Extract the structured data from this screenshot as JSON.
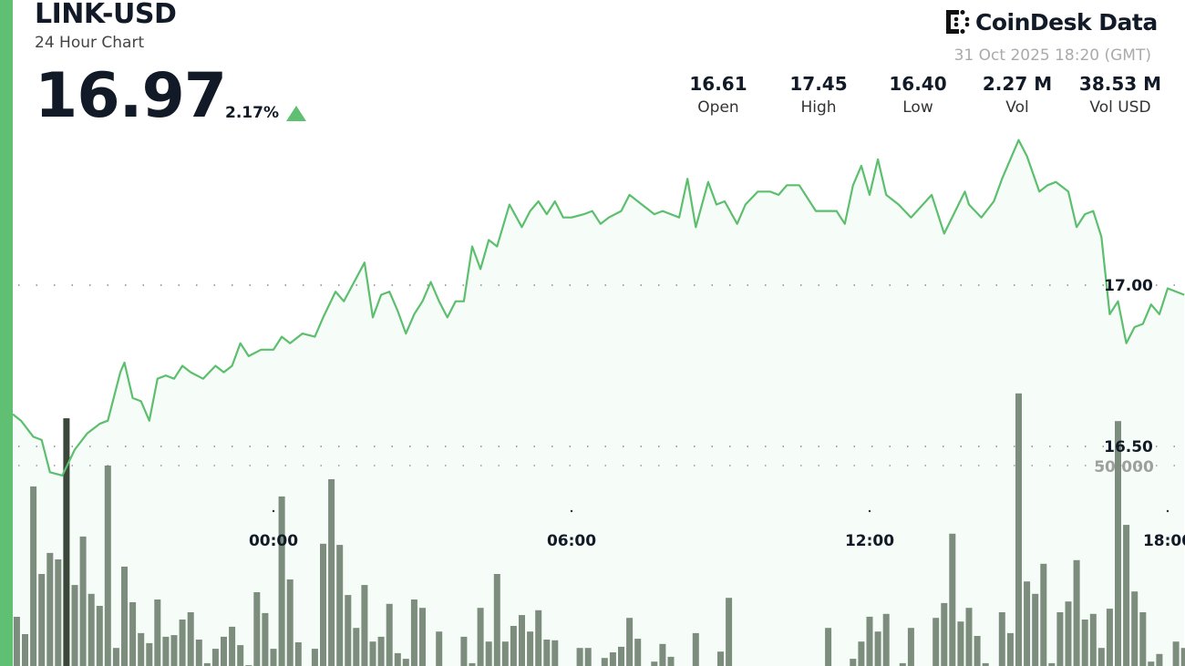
{
  "header": {
    "title": "LINK-USD",
    "subtitle": "24 Hour Chart",
    "price": "16.97",
    "change": "2.17%",
    "change_direction": "up",
    "brand": "CoinDesk Data",
    "timestamp": "31 Oct 2025 18:20 (GMT)",
    "stats": [
      {
        "value": "16.61",
        "label": "Open"
      },
      {
        "value": "17.45",
        "label": "High"
      },
      {
        "value": "16.40",
        "label": "Low"
      },
      {
        "value": "2.27 M",
        "label": "Vol"
      },
      {
        "value": "38.53 M",
        "label": "Vol USD"
      }
    ]
  },
  "colors": {
    "accent": "#5fbf72",
    "line": "#5cbf6e",
    "volume": "#6f806f",
    "volume_highlight": "#3c473c",
    "text": "#111a26"
  },
  "chart_data": {
    "type": "line",
    "title": "",
    "x_ticks": [
      "00:00",
      "06:00",
      "12:00",
      "18:00"
    ],
    "price_ticks": [
      {
        "value": 17.0,
        "label": "17.00"
      },
      {
        "value": 16.5,
        "label": "16.50"
      }
    ],
    "volume_ticks": [
      {
        "value": 50000,
        "label": "50,000"
      }
    ],
    "grid": "dotted horizontal",
    "series": [
      {
        "type": "line-area",
        "points": [
          [
            "10-30 18:45",
            16.6
          ],
          [
            "10-30 18:55",
            16.58
          ],
          [
            "10-30 19:10",
            16.53
          ],
          [
            "10-30 19:20",
            16.52
          ],
          [
            "10-30 19:30",
            16.42
          ],
          [
            "10-30 19:45",
            16.41
          ],
          [
            "10-30 20:00",
            16.49
          ],
          [
            "10-30 20:15",
            16.54
          ],
          [
            "10-30 20:30",
            16.57
          ],
          [
            "10-30 20:40",
            16.58
          ],
          [
            "10-30 20:55",
            16.73
          ],
          [
            "10-30 21:00",
            16.76
          ],
          [
            "10-30 21:10",
            16.65
          ],
          [
            "10-30 21:20",
            16.64
          ],
          [
            "10-30 21:30",
            16.58
          ],
          [
            "10-30 21:40",
            16.71
          ],
          [
            "10-30 21:50",
            16.72
          ],
          [
            "10-30 22:00",
            16.71
          ],
          [
            "10-30 22:10",
            16.75
          ],
          [
            "10-30 22:20",
            16.73
          ],
          [
            "10-30 22:35",
            16.71
          ],
          [
            "10-30 22:50",
            16.75
          ],
          [
            "10-30 23:00",
            16.73
          ],
          [
            "10-30 23:10",
            16.75
          ],
          [
            "10-30 23:20",
            16.82
          ],
          [
            "10-30 23:30",
            16.78
          ],
          [
            "10-30 23:45",
            16.8
          ],
          [
            "10-31 00:00",
            16.8
          ],
          [
            "10-31 00:10",
            16.84
          ],
          [
            "10-31 00:20",
            16.82
          ],
          [
            "10-31 00:35",
            16.85
          ],
          [
            "10-31 00:50",
            16.84
          ],
          [
            "10-31 01:00",
            16.9
          ],
          [
            "10-31 01:15",
            16.98
          ],
          [
            "10-31 01:25",
            16.95
          ],
          [
            "10-31 01:50",
            17.07
          ],
          [
            "10-31 02:00",
            16.9
          ],
          [
            "10-31 02:10",
            16.97
          ],
          [
            "10-31 02:20",
            16.98
          ],
          [
            "10-31 02:30",
            16.92
          ],
          [
            "10-31 02:40",
            16.85
          ],
          [
            "10-31 02:50",
            16.91
          ],
          [
            "10-31 03:00",
            16.95
          ],
          [
            "10-31 03:10",
            17.01
          ],
          [
            "10-31 03:20",
            16.95
          ],
          [
            "10-31 03:30",
            16.9
          ],
          [
            "10-31 03:40",
            16.95
          ],
          [
            "10-31 03:50",
            16.95
          ],
          [
            "10-31 04:00",
            17.12
          ],
          [
            "10-31 04:10",
            17.05
          ],
          [
            "10-31 04:20",
            17.14
          ],
          [
            "10-31 04:30",
            17.12
          ],
          [
            "10-31 04:45",
            17.25
          ],
          [
            "10-31 05:00",
            17.18
          ],
          [
            "10-31 05:10",
            17.23
          ],
          [
            "10-31 05:20",
            17.26
          ],
          [
            "10-31 05:30",
            17.22
          ],
          [
            "10-31 05:40",
            17.26
          ],
          [
            "10-31 05:50",
            17.21
          ],
          [
            "10-31 06:00",
            17.21
          ],
          [
            "10-31 06:15",
            17.22
          ],
          [
            "10-31 06:25",
            17.23
          ],
          [
            "10-31 06:35",
            17.19
          ],
          [
            "10-31 06:45",
            17.21
          ],
          [
            "10-31 07:00",
            17.23
          ],
          [
            "10-31 07:10",
            17.28
          ],
          [
            "10-31 07:25",
            17.25
          ],
          [
            "10-31 07:40",
            17.22
          ],
          [
            "10-31 07:50",
            17.23
          ],
          [
            "10-31 08:10",
            17.21
          ],
          [
            "10-31 08:20",
            17.33
          ],
          [
            "10-31 08:30",
            17.18
          ],
          [
            "10-31 08:45",
            17.32
          ],
          [
            "10-31 08:55",
            17.25
          ],
          [
            "10-31 09:05",
            17.26
          ],
          [
            "10-31 09:20",
            17.19
          ],
          [
            "10-31 09:30",
            17.25
          ],
          [
            "10-31 09:45",
            17.29
          ],
          [
            "10-31 10:00",
            17.29
          ],
          [
            "10-31 10:10",
            17.28
          ],
          [
            "10-31 10:20",
            17.31
          ],
          [
            "10-31 10:35",
            17.31
          ],
          [
            "10-31 10:55",
            17.23
          ],
          [
            "10-31 11:05",
            17.23
          ],
          [
            "10-31 11:20",
            17.23
          ],
          [
            "10-31 11:30",
            17.19
          ],
          [
            "10-31 11:40",
            17.31
          ],
          [
            "10-31 11:50",
            17.37
          ],
          [
            "10-31 12:00",
            17.28
          ],
          [
            "10-31 12:10",
            17.39
          ],
          [
            "10-31 12:20",
            17.28
          ],
          [
            "10-31 12:35",
            17.25
          ],
          [
            "10-31 12:50",
            17.21
          ],
          [
            "10-31 13:15",
            17.28
          ],
          [
            "10-31 13:30",
            17.16
          ],
          [
            "10-31 13:55",
            17.29
          ],
          [
            "10-31 14:00",
            17.25
          ],
          [
            "10-31 14:15",
            17.21
          ],
          [
            "10-31 14:30",
            17.26
          ],
          [
            "10-31 14:40",
            17.33
          ],
          [
            "10-31 15:00",
            17.45
          ],
          [
            "10-31 15:10",
            17.4
          ],
          [
            "10-31 15:25",
            17.29
          ],
          [
            "10-31 15:35",
            17.31
          ],
          [
            "10-31 15:45",
            17.32
          ],
          [
            "10-31 16:00",
            17.29
          ],
          [
            "10-31 16:10",
            17.18
          ],
          [
            "10-31 16:20",
            17.22
          ],
          [
            "10-31 16:30",
            17.23
          ],
          [
            "10-31 16:40",
            17.15
          ],
          [
            "10-31 16:50",
            16.91
          ],
          [
            "10-31 17:00",
            16.95
          ],
          [
            "10-31 17:10",
            16.82
          ],
          [
            "10-31 17:20",
            16.87
          ],
          [
            "10-31 17:30",
            16.88
          ],
          [
            "10-31 17:40",
            16.94
          ],
          [
            "10-31 17:50",
            16.91
          ],
          [
            "10-31 18:00",
            16.99
          ],
          [
            "10-31 18:20",
            16.97
          ]
        ]
      },
      {
        "type": "volume-bar",
        "start": "10-30 18:50",
        "interval_minutes": 10,
        "highlight_index": 6,
        "values": [
          12270,
          7950,
          44800,
          22950,
          28200,
          26600,
          61800,
          20200,
          32300,
          18000,
          15000,
          50000,
          4500,
          24800,
          15900,
          8200,
          5700,
          16600,
          7300,
          7700,
          11600,
          13400,
          6600,
          700,
          4300,
          7300,
          9800,
          5200,
          200,
          18400,
          13200,
          4300,
          42300,
          21600,
          5900,
          0,
          4300,
          30500,
          46600,
          30200,
          17700,
          9500,
          20200,
          6100,
          7300,
          15500,
          3200,
          1800,
          16600,
          14500,
          0,
          8600,
          0,
          0,
          7300,
          700,
          14500,
          6100,
          22950,
          6100,
          10000,
          12700,
          8600,
          13900,
          6600,
          6400,
          0,
          0,
          4500,
          4500,
          0,
          2000,
          3400,
          4800,
          12000,
          6800,
          0,
          1100,
          5500,
          2300,
          0,
          0,
          8200,
          0,
          0,
          3600,
          17000,
          0,
          0,
          0,
          0,
          0,
          0,
          0,
          0,
          0,
          0,
          0,
          9500,
          0,
          0,
          1800,
          6100,
          12300,
          8600,
          13000,
          0,
          700,
          9500,
          0,
          0,
          12000,
          15700,
          33000,
          11100,
          14500,
          7500,
          700,
          0,
          13400,
          8200,
          68000,
          21100,
          18000,
          25500,
          700,
          13400,
          16100,
          26400,
          11600,
          13000,
          4500,
          14300,
          61100,
          35200,
          18600,
          13400,
          1100,
          3000,
          0,
          6100,
          4500,
          0
        ]
      }
    ]
  }
}
